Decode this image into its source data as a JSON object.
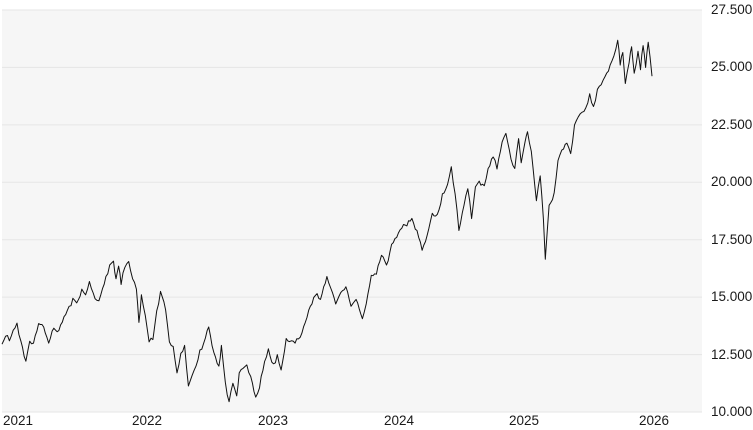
{
  "chart_data": {
    "type": "line",
    "title": "",
    "legend": "none",
    "grid": "horizontal-only",
    "plot_bg": "#f6f6f6",
    "page_bg": "#ffffff",
    "grid_color": "#e5e5e5",
    "line_color": "#111111",
    "label_color": "#1a1a1a",
    "xlabel": "",
    "ylabel": "",
    "xlim": [
      2020.992,
      2026.504
    ],
    "ylim": [
      10000,
      27500
    ],
    "x_tick_years": [
      2021,
      2022,
      2023,
      2024,
      2025,
      2026
    ],
    "x_tick_labels": [
      "2021",
      "2022",
      "2023",
      "2024",
      "2025",
      "2026"
    ],
    "y_tick_values": [
      27500,
      25000,
      22500,
      20000,
      17500,
      15000,
      12500,
      10000
    ],
    "y_tick_labels": [
      "27.500",
      "25.000",
      "22.500",
      "20.000",
      "17.500",
      "15.000",
      "12.500",
      "10.000"
    ],
    "series": [
      {
        "points": [
          [
            2020.992,
            12950
          ],
          [
            2021.02,
            13300
          ],
          [
            2021.05,
            13100
          ],
          [
            2021.08,
            13560
          ],
          [
            2021.11,
            13870
          ],
          [
            2021.14,
            13100
          ],
          [
            2021.18,
            12210
          ],
          [
            2021.21,
            13080
          ],
          [
            2021.24,
            13000
          ],
          [
            2021.28,
            13850
          ],
          [
            2021.32,
            13700
          ],
          [
            2021.36,
            13000
          ],
          [
            2021.4,
            13650
          ],
          [
            2021.44,
            13550
          ],
          [
            2021.48,
            14150
          ],
          [
            2021.52,
            14600
          ],
          [
            2021.55,
            14950
          ],
          [
            2021.58,
            14750
          ],
          [
            2021.62,
            15350
          ],
          [
            2021.65,
            15100
          ],
          [
            2021.68,
            15680
          ],
          [
            2021.71,
            15180
          ],
          [
            2021.74,
            14860
          ],
          [
            2021.77,
            15100
          ],
          [
            2021.81,
            15900
          ],
          [
            2021.84,
            16400
          ],
          [
            2021.87,
            16570
          ],
          [
            2021.89,
            15800
          ],
          [
            2021.91,
            16350
          ],
          [
            2021.93,
            15550
          ],
          [
            2021.96,
            16300
          ],
          [
            2021.99,
            16550
          ],
          [
            2022.02,
            15800
          ],
          [
            2022.05,
            15350
          ],
          [
            2022.07,
            13900
          ],
          [
            2022.09,
            15100
          ],
          [
            2022.12,
            14200
          ],
          [
            2022.15,
            13050
          ],
          [
            2022.18,
            13150
          ],
          [
            2022.21,
            14400
          ],
          [
            2022.24,
            15250
          ],
          [
            2022.28,
            14450
          ],
          [
            2022.31,
            13050
          ],
          [
            2022.34,
            12850
          ],
          [
            2022.37,
            11700
          ],
          [
            2022.4,
            12550
          ],
          [
            2022.43,
            12900
          ],
          [
            2022.46,
            11130
          ],
          [
            2022.49,
            11600
          ],
          [
            2022.52,
            12000
          ],
          [
            2022.55,
            12700
          ],
          [
            2022.58,
            13000
          ],
          [
            2022.62,
            13700
          ],
          [
            2022.66,
            12600
          ],
          [
            2022.7,
            12000
          ],
          [
            2022.72,
            12900
          ],
          [
            2022.75,
            11300
          ],
          [
            2022.78,
            10450
          ],
          [
            2022.81,
            11250
          ],
          [
            2022.84,
            10700
          ],
          [
            2022.86,
            11700
          ],
          [
            2022.89,
            11900
          ],
          [
            2022.92,
            12050
          ],
          [
            2022.95,
            11550
          ],
          [
            2022.99,
            10650
          ],
          [
            2023.02,
            11050
          ],
          [
            2023.06,
            12200
          ],
          [
            2023.09,
            12750
          ],
          [
            2023.13,
            12100
          ],
          [
            2023.16,
            12500
          ],
          [
            2023.19,
            11830
          ],
          [
            2023.23,
            13200
          ],
          [
            2023.27,
            13100
          ],
          [
            2023.3,
            13000
          ],
          [
            2023.34,
            13250
          ],
          [
            2023.38,
            13900
          ],
          [
            2023.42,
            14600
          ],
          [
            2023.46,
            15070
          ],
          [
            2023.5,
            14900
          ],
          [
            2023.55,
            15900
          ],
          [
            2023.58,
            15400
          ],
          [
            2023.62,
            14700
          ],
          [
            2023.66,
            15200
          ],
          [
            2023.7,
            15450
          ],
          [
            2023.74,
            14600
          ],
          [
            2023.78,
            14900
          ],
          [
            2023.83,
            14060
          ],
          [
            2023.86,
            14700
          ],
          [
            2023.9,
            15950
          ],
          [
            2023.94,
            16000
          ],
          [
            2023.98,
            16820
          ],
          [
            2024.02,
            16400
          ],
          [
            2024.06,
            17300
          ],
          [
            2024.1,
            17600
          ],
          [
            2024.14,
            18000
          ],
          [
            2024.18,
            18100
          ],
          [
            2024.22,
            18430
          ],
          [
            2024.26,
            17900
          ],
          [
            2024.3,
            17040
          ],
          [
            2024.34,
            17700
          ],
          [
            2024.38,
            18650
          ],
          [
            2024.42,
            18600
          ],
          [
            2024.46,
            19500
          ],
          [
            2024.5,
            19900
          ],
          [
            2024.53,
            20680
          ],
          [
            2024.56,
            19500
          ],
          [
            2024.59,
            17900
          ],
          [
            2024.63,
            19000
          ],
          [
            2024.66,
            19720
          ],
          [
            2024.69,
            18420
          ],
          [
            2024.72,
            19800
          ],
          [
            2024.75,
            20050
          ],
          [
            2024.79,
            19850
          ],
          [
            2024.82,
            20600
          ],
          [
            2024.86,
            21100
          ],
          [
            2024.89,
            20580
          ],
          [
            2024.93,
            21750
          ],
          [
            2024.96,
            22130
          ],
          [
            2025.0,
            21010
          ],
          [
            2025.03,
            20600
          ],
          [
            2025.06,
            21900
          ],
          [
            2025.08,
            20850
          ],
          [
            2025.11,
            21750
          ],
          [
            2025.13,
            22200
          ],
          [
            2025.16,
            21350
          ],
          [
            2025.2,
            19200
          ],
          [
            2025.23,
            20280
          ],
          [
            2025.255,
            18400
          ],
          [
            2025.27,
            16650
          ],
          [
            2025.3,
            19000
          ],
          [
            2025.34,
            19550
          ],
          [
            2025.37,
            20950
          ],
          [
            2025.4,
            21400
          ],
          [
            2025.44,
            21700
          ],
          [
            2025.47,
            21250
          ],
          [
            2025.5,
            22500
          ],
          [
            2025.53,
            22850
          ],
          [
            2025.56,
            23050
          ],
          [
            2025.59,
            23250
          ],
          [
            2025.62,
            23850
          ],
          [
            2025.65,
            23300
          ],
          [
            2025.68,
            24050
          ],
          [
            2025.71,
            24250
          ],
          [
            2025.74,
            24600
          ],
          [
            2025.78,
            25100
          ],
          [
            2025.81,
            25500
          ],
          [
            2025.84,
            26180
          ],
          [
            2025.86,
            25100
          ],
          [
            2025.88,
            25650
          ],
          [
            2025.9,
            24300
          ],
          [
            2025.93,
            25200
          ],
          [
            2025.95,
            25900
          ],
          [
            2025.97,
            24750
          ],
          [
            2026.0,
            25700
          ],
          [
            2026.02,
            24900
          ],
          [
            2026.04,
            25950
          ],
          [
            2026.06,
            25000
          ],
          [
            2026.08,
            26100
          ],
          [
            2026.11,
            24620
          ]
        ]
      }
    ]
  }
}
